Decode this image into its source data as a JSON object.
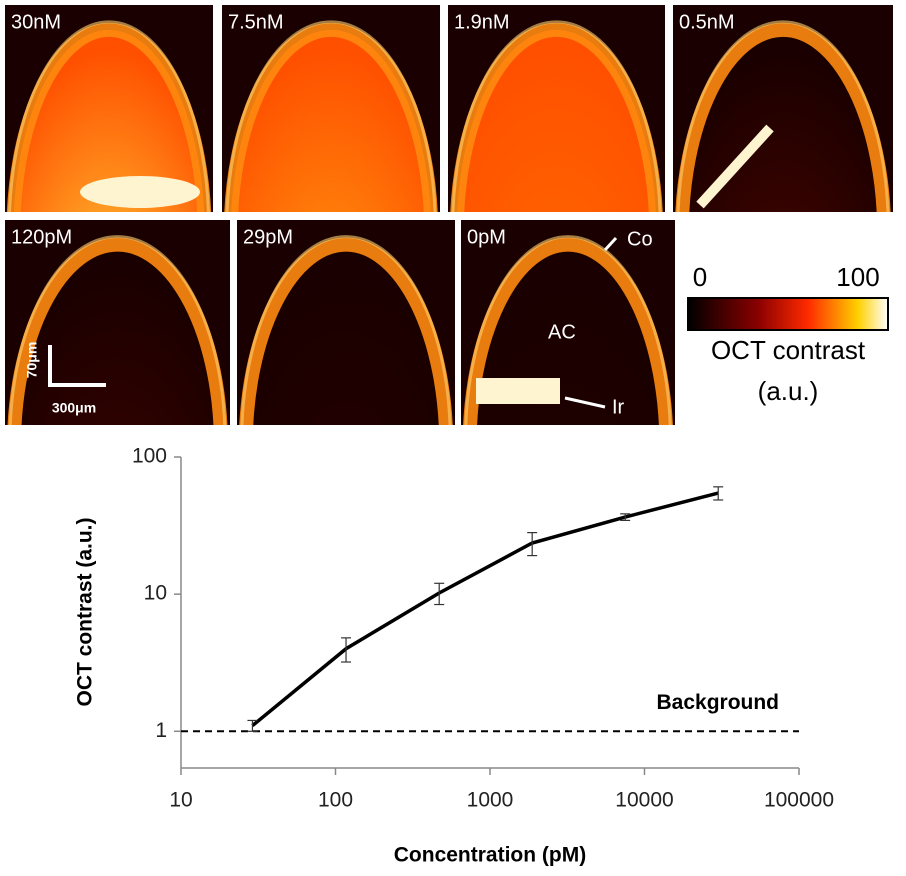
{
  "panels": [
    {
      "label": "30nM"
    },
    {
      "label": "7.5nM"
    },
    {
      "label": "1.9nM"
    },
    {
      "label": "0.5nM"
    },
    {
      "label": "120pM",
      "scale_y": "70μm",
      "scale_x": "300μm"
    },
    {
      "label": "29pM"
    },
    {
      "label": "0pM",
      "annotations": [
        "Co",
        "AC",
        "Ir"
      ]
    }
  ],
  "colorbar": {
    "min": "0",
    "max": "100",
    "title": "OCT contrast",
    "unit": "(a.u.)"
  },
  "chart_data": {
    "type": "line",
    "x_label": "Concentration (pM)",
    "y_label": "OCT contrast (a.u.)",
    "x": [
      29,
      117,
      469,
      1875,
      7500,
      30000
    ],
    "values": [
      1.1,
      4.0,
      10.2,
      23.6,
      36.5,
      54.6
    ],
    "errors": [
      0.1,
      0.8,
      1.8,
      4.5,
      2,
      6
    ],
    "color": "#000000",
    "x_log": true,
    "y_log": true,
    "xlim": [
      10,
      100000
    ],
    "xticks": [
      10,
      100,
      1000,
      10000,
      100000
    ],
    "ylim": [
      0.54,
      100
    ],
    "yticks": [
      1,
      10,
      100
    ],
    "reference_line": {
      "value": 1,
      "label": "Background"
    }
  }
}
